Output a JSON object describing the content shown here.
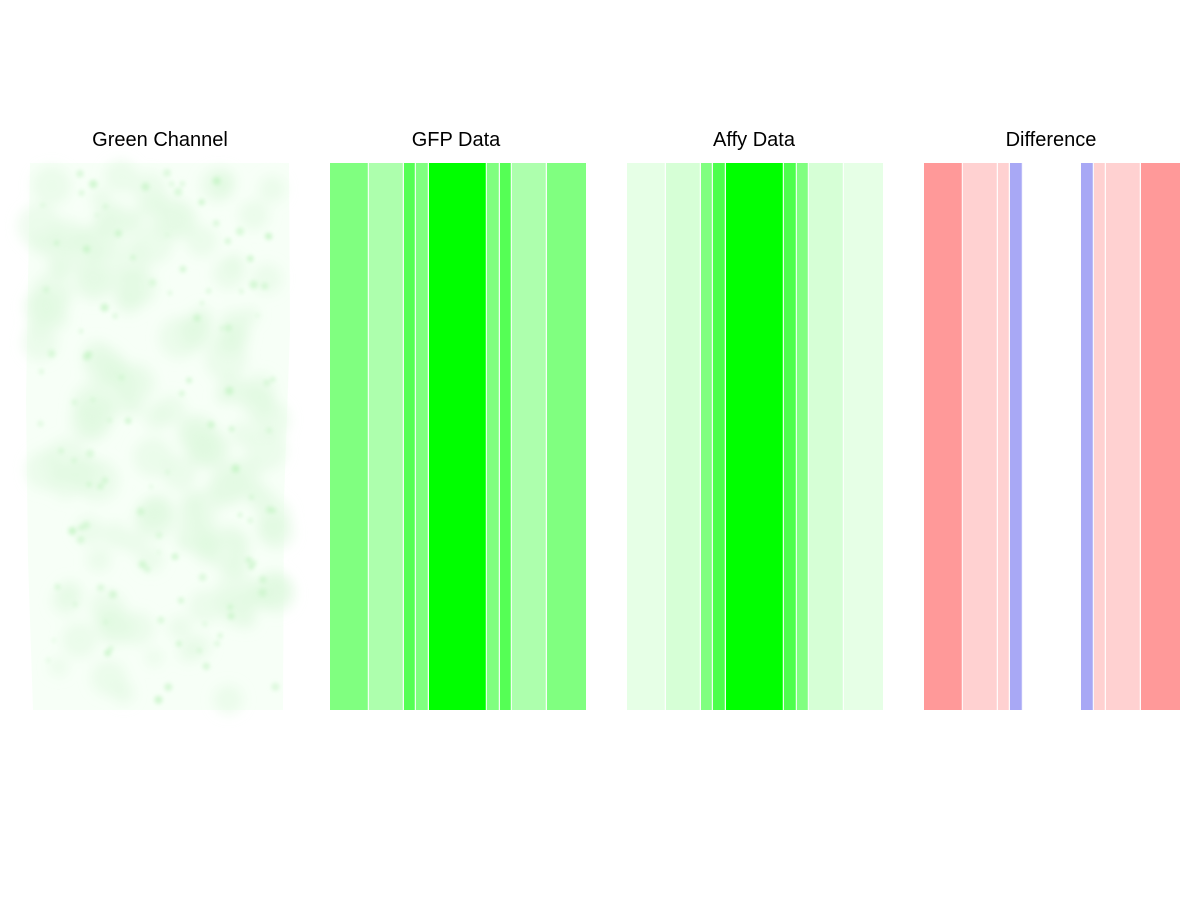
{
  "chart_data": [
    {
      "type": "image",
      "title": "Green Channel",
      "colors": {
        "background": "#f7fff7",
        "spot": "#c9f5c9"
      },
      "description_data": {
        "texture": "speckled microscopy image"
      }
    },
    {
      "type": "heatmap",
      "title": "GFP Data",
      "orientation": "vertical-bands",
      "bands": [
        {
          "width": 39,
          "color": "#80ff80"
        },
        {
          "width": 35,
          "color": "#adffad"
        },
        {
          "width": 12,
          "color": "#55ff55"
        },
        {
          "width": 13,
          "color": "#80ff80"
        },
        {
          "width": 58,
          "color": "#00ff00"
        },
        {
          "width": 13,
          "color": "#80ff80"
        },
        {
          "width": 12,
          "color": "#55ff55"
        },
        {
          "width": 35,
          "color": "#adffad"
        },
        {
          "width": 39,
          "color": "#80ff80"
        }
      ]
    },
    {
      "type": "heatmap",
      "title": "Affy Data",
      "orientation": "vertical-bands",
      "bands": [
        {
          "width": 39,
          "color": "#e6ffe6"
        },
        {
          "width": 35,
          "color": "#d6ffd6"
        },
        {
          "width": 12,
          "color": "#80ff80"
        },
        {
          "width": 13,
          "color": "#4dff4d"
        },
        {
          "width": 58,
          "color": "#00ff00"
        },
        {
          "width": 13,
          "color": "#4dff4d"
        },
        {
          "width": 12,
          "color": "#80ff80"
        },
        {
          "width": 35,
          "color": "#d6ffd6"
        },
        {
          "width": 39,
          "color": "#e6ffe6"
        }
      ]
    },
    {
      "type": "heatmap",
      "title": "Difference",
      "orientation": "vertical-bands",
      "bands": [
        {
          "width": 39,
          "color": "#ff9999"
        },
        {
          "width": 35,
          "color": "#ffd1d1"
        },
        {
          "width": 12,
          "color": "#ffd1d1"
        },
        {
          "width": 13,
          "color": "#a8a8f5"
        },
        {
          "width": 58,
          "color": "#ffffff"
        },
        {
          "width": 13,
          "color": "#a8a8f5"
        },
        {
          "width": 12,
          "color": "#ffd1d1"
        },
        {
          "width": 35,
          "color": "#ffd1d1"
        },
        {
          "width": 39,
          "color": "#ff9999"
        }
      ]
    }
  ]
}
